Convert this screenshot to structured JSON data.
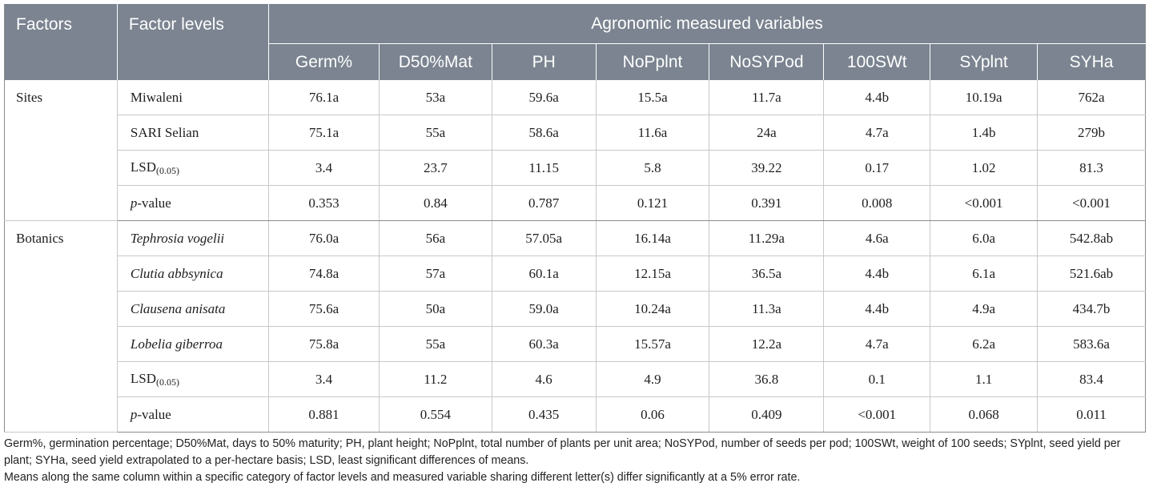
{
  "header": {
    "factors": "Factors",
    "factor_levels": "Factor levels",
    "group": "Agronomic measured variables",
    "variables": [
      "Germ%",
      "D50%Mat",
      "PH",
      "NoPplnt",
      "NoSYPod",
      "100SWt",
      "SYplnt",
      "SYHa"
    ]
  },
  "groups": [
    {
      "factor": "Sites",
      "rows": [
        {
          "level": "Miwaleni",
          "values": [
            "76.1a",
            "53a",
            "59.6a",
            "15.5a",
            "11.7a",
            "4.4b",
            "10.19a",
            "762a"
          ]
        },
        {
          "level": "SARI Selian",
          "values": [
            "75.1a",
            "55a",
            "58.6a",
            "11.6a",
            "24a",
            "4.7a",
            "1.4b",
            "279b"
          ]
        },
        {
          "level": "LSD",
          "level_sub": "(0.05)",
          "values": [
            "3.4",
            "23.7",
            "11.15",
            "5.8",
            "39.22",
            "0.17",
            "1.02",
            "81.3"
          ]
        },
        {
          "level_italic": "p",
          "level_rest": "-value",
          "values": [
            "0.353",
            "0.84",
            "0.787",
            "0.121",
            "0.391",
            "0.008",
            "<0.001",
            "<0.001"
          ]
        }
      ]
    },
    {
      "factor": "Botanics",
      "rows": [
        {
          "level": "Tephrosia vogelii",
          "values": [
            "76.0a",
            "56a",
            "57.05a",
            "16.14a",
            "11.29a",
            "4.6a",
            "6.0a",
            "542.8ab"
          ]
        },
        {
          "level": "Clutia abbsynica",
          "values": [
            "74.8a",
            "57a",
            "60.1a",
            "12.15a",
            "36.5a",
            "4.4b",
            "6.1a",
            "521.6ab"
          ]
        },
        {
          "level": "Clausena anisata",
          "values": [
            "75.6a",
            "50a",
            "59.0a",
            "10.24a",
            "11.3a",
            "4.4b",
            "4.9a",
            "434.7b"
          ]
        },
        {
          "level": "Lobelia giberroa",
          "values": [
            "75.8a",
            "55a",
            "60.3a",
            "15.57a",
            "12.2a",
            "4.7a",
            "6.2a",
            "583.6a"
          ]
        },
        {
          "level": "LSD",
          "level_sub": "(0.05)",
          "values": [
            "3.4",
            "11.2",
            "4.6",
            "4.9",
            "36.8",
            "0.1",
            "1.1",
            "83.4"
          ]
        },
        {
          "level_italic": "p",
          "level_rest": "-value",
          "values": [
            "0.881",
            "0.554",
            "0.435",
            "0.06",
            "0.409",
            "<0.001",
            "0.068",
            "0.011"
          ]
        }
      ]
    }
  ],
  "notes": {
    "abbreviations": "Germ%, germination percentage; D50%Mat, days to 50% maturity; PH, plant height; NoPplnt, total number of plants per unit area; NoSYPod, number of seeds per pod; 100SWt, weight of 100 seeds; SYplnt, seed yield per plant; SYHa, seed yield extrapolated to a per-hectare basis; LSD, least significant differences of means.",
    "significance": "Means along the same column within a specific category of factor levels and measured variable sharing different letter(s) differ significantly at a 5% error rate."
  },
  "colors": {
    "header_bg": "#7b8490",
    "header_text": "#ffffff",
    "grid": "#c8c8c8"
  }
}
